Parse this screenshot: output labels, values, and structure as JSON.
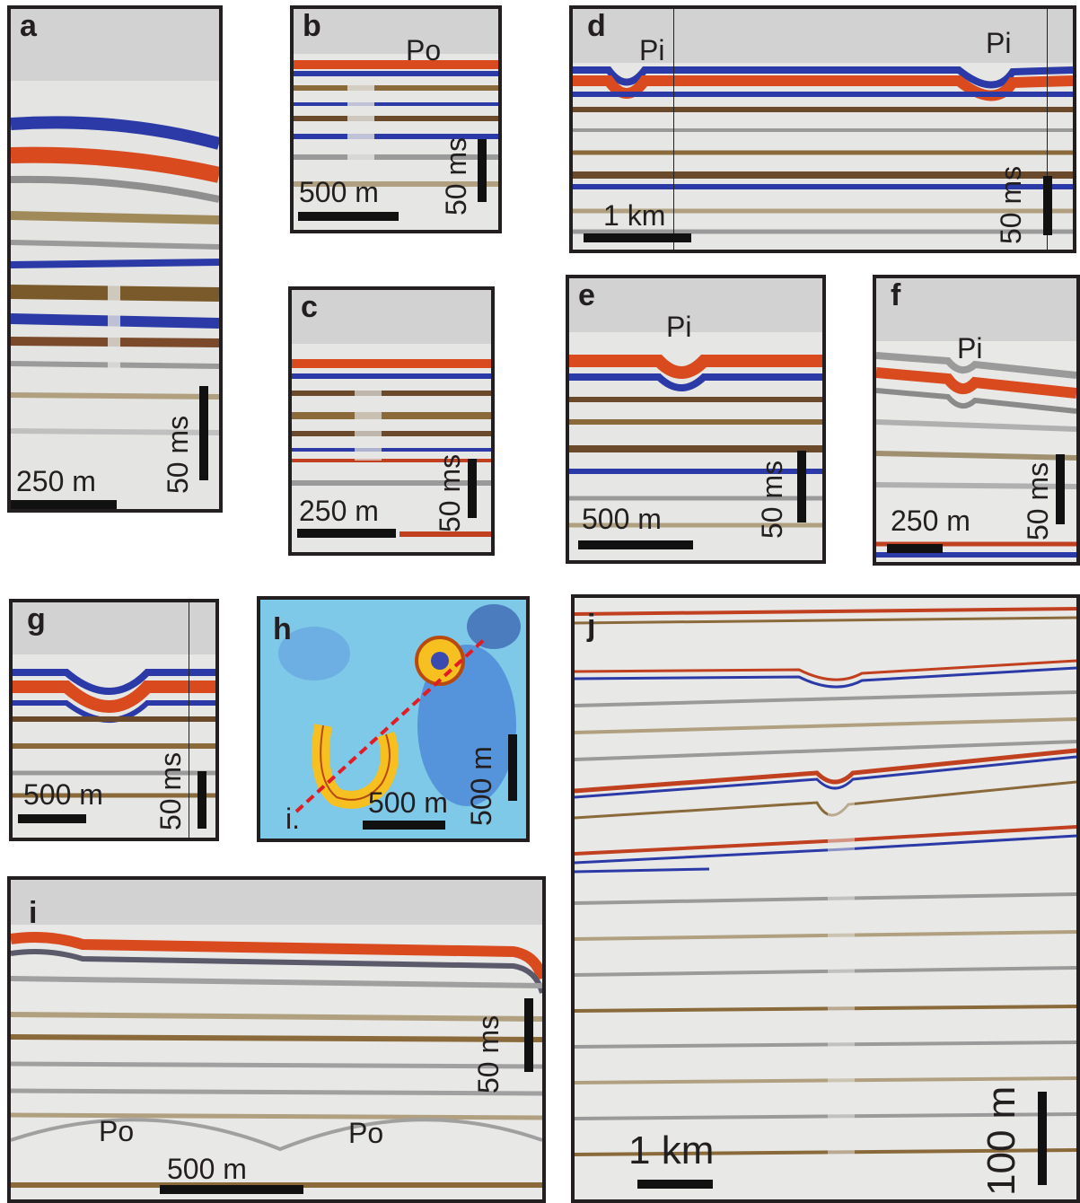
{
  "panels": {
    "a": {
      "label": "a",
      "scale_h": "250 m",
      "scale_v": "50 ms"
    },
    "b": {
      "label": "b",
      "feature": "Po",
      "scale_h": "500 m",
      "scale_v": "50 ms"
    },
    "c": {
      "label": "c",
      "scale_h": "250 m",
      "scale_v": "50 ms"
    },
    "d": {
      "label": "d",
      "feature_1": "Pi",
      "feature_2": "Pi",
      "scale_h": "1 km",
      "scale_v": "50 ms"
    },
    "e": {
      "label": "e",
      "feature": "Pi",
      "scale_h": "500 m",
      "scale_v": "50 ms"
    },
    "f": {
      "label": "f",
      "feature": "Pi",
      "scale_h": "250 m",
      "scale_v": "50 ms"
    },
    "g": {
      "label": "g",
      "scale_h": "500 m",
      "scale_v": "50 ms"
    },
    "h": {
      "label": "h",
      "line_label": "i.",
      "scale_h": "500 m",
      "scale_v": "500 m"
    },
    "i": {
      "label": "i",
      "feature_1": "Po",
      "feature_2": "Po",
      "scale_h": "500 m",
      "scale_v": "50 ms"
    },
    "j": {
      "label": "j",
      "scale_h": "1 km",
      "scale_v": "100 m"
    }
  },
  "colors": {
    "positive": "#d9401f",
    "negative": "#2a3db8",
    "neutral": "#8a7a55",
    "map_bg": "#7ec8e8",
    "map_ring": "#f5c020"
  }
}
